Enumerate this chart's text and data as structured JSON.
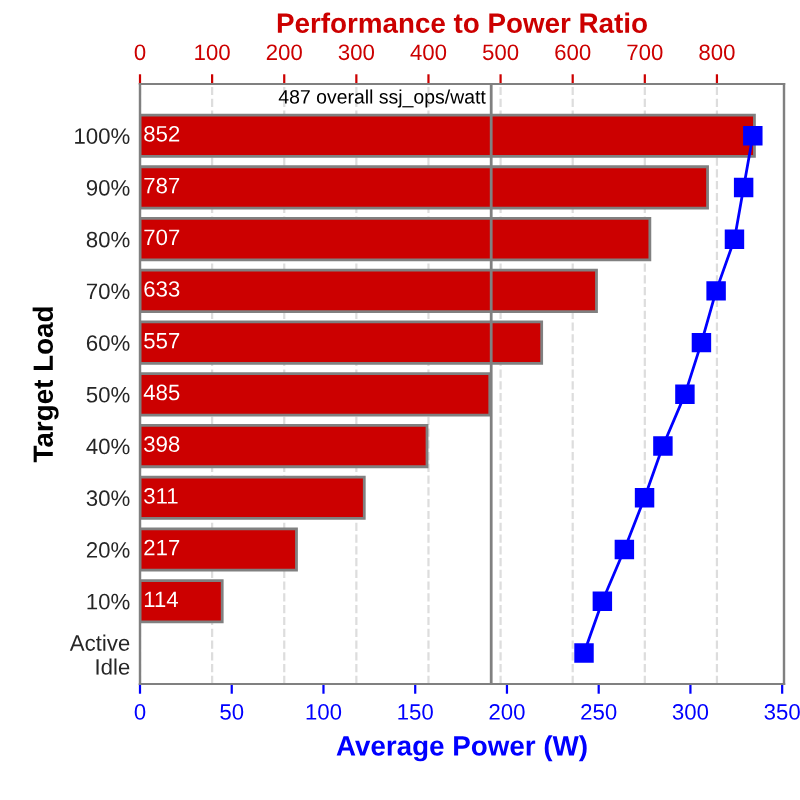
{
  "chart_data": {
    "type": "bar",
    "orientation": "horizontal",
    "x2label": "Performance to Power Ratio",
    "xlabel": "Average Power (W)",
    "ylabel": "Target Load",
    "categories": [
      "100%",
      "90%",
      "80%",
      "70%",
      "60%",
      "50%",
      "40%",
      "30%",
      "20%",
      "10%",
      "Active\nIdle"
    ],
    "series": [
      {
        "axis": "x2",
        "color": "#cc0000",
        "values": [
          852,
          787,
          707,
          633,
          557,
          485,
          398,
          311,
          217,
          114,
          null
        ],
        "value_labels": [
          "852",
          "787",
          "707",
          "633",
          "557",
          "485",
          "398",
          "311",
          "217",
          "114",
          null
        ]
      },
      {
        "type": "line",
        "color": "#0000ff",
        "marker": "square",
        "line_style": "solid",
        "values": [
          334,
          329,
          324,
          314,
          306,
          297,
          285,
          275,
          264,
          252,
          242
        ]
      }
    ],
    "xlim": [
      0,
      351
    ],
    "xticks": [
      0,
      50,
      100,
      150,
      200,
      250,
      300,
      350
    ],
    "x2lim": [
      0,
      893
    ],
    "x2ticks": [
      0,
      100,
      200,
      300,
      400,
      500,
      600,
      700,
      800
    ],
    "ref_lines": [
      {
        "axis": "x2",
        "value": 487,
        "label": "487 overall ssj_ops/watt",
        "color": "#808080"
      }
    ],
    "grid": "x",
    "legend": false
  }
}
